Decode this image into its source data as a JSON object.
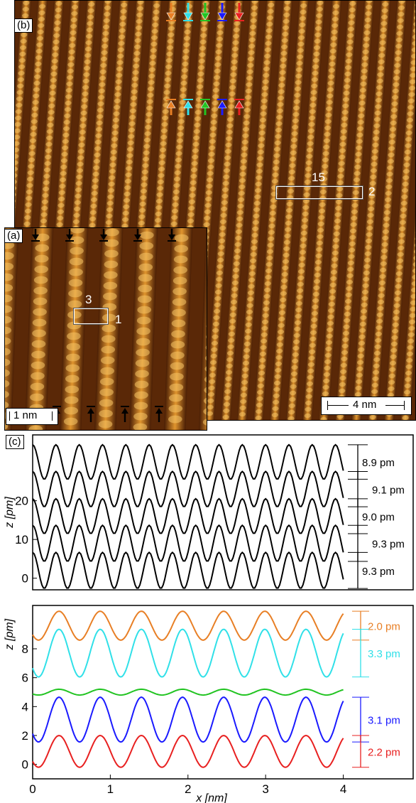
{
  "panels": {
    "a": {
      "label": "(a)",
      "scalebar": "1 nm",
      "box_top_label": "3",
      "box_side_label": "1"
    },
    "b": {
      "label": "(b)",
      "scalebar": "4 nm",
      "box_top_label": "15",
      "box_side_label": "2"
    },
    "c": {
      "label": "(c)"
    }
  },
  "arrow_colors": [
    "#e87f25",
    "#30e0e8",
    "#22c422",
    "#1a1aff",
    "#e82020"
  ],
  "chart_data": [
    {
      "type": "line",
      "ylabel": "z [pm]",
      "ylim": [
        -3,
        37
      ],
      "yticks": [
        0,
        10,
        20
      ],
      "xlim": [
        0,
        4
      ],
      "series": [
        {
          "color": "#000000",
          "offset": 30,
          "amplitude": 8.9,
          "period": 0.3
        },
        {
          "color": "#000000",
          "offset": 23,
          "amplitude": 9.1,
          "period": 0.3
        },
        {
          "color": "#000000",
          "offset": 16,
          "amplitude": 9.0,
          "period": 0.3
        },
        {
          "color": "#000000",
          "offset": 9,
          "amplitude": 9.3,
          "period": 0.3
        },
        {
          "color": "#000000",
          "offset": 2,
          "amplitude": 9.3,
          "period": 0.3
        }
      ],
      "annotations": [
        "8.9 pm",
        "9.1 pm",
        "9.0 pm",
        "9.3 pm",
        "9.3 pm"
      ]
    },
    {
      "type": "line",
      "ylabel": "z [pm]",
      "xlabel": "x [nm]",
      "ylim": [
        -1,
        11
      ],
      "yticks": [
        0,
        2,
        4,
        6,
        8
      ],
      "xlim": [
        0,
        4.9
      ],
      "xticks": [
        0,
        1,
        2,
        3,
        4
      ],
      "series": [
        {
          "color": "#e87f25",
          "mid": 9.6,
          "amplitude": 2.0,
          "period": 0.53
        },
        {
          "color": "#30e0e8",
          "mid": 7.7,
          "amplitude": 3.3,
          "period": 0.53
        },
        {
          "color": "#22c422",
          "mid": 5.0,
          "amplitude": 0.4,
          "period": 0.53
        },
        {
          "color": "#1a1aff",
          "mid": 3.1,
          "amplitude": 3.1,
          "period": 0.53
        },
        {
          "color": "#e82020",
          "mid": 0.9,
          "amplitude": 2.2,
          "period": 0.53
        }
      ],
      "annotations": [
        "2.0 pm",
        "3.3 pm",
        "3.1 pm",
        "2.2 pm"
      ]
    }
  ]
}
